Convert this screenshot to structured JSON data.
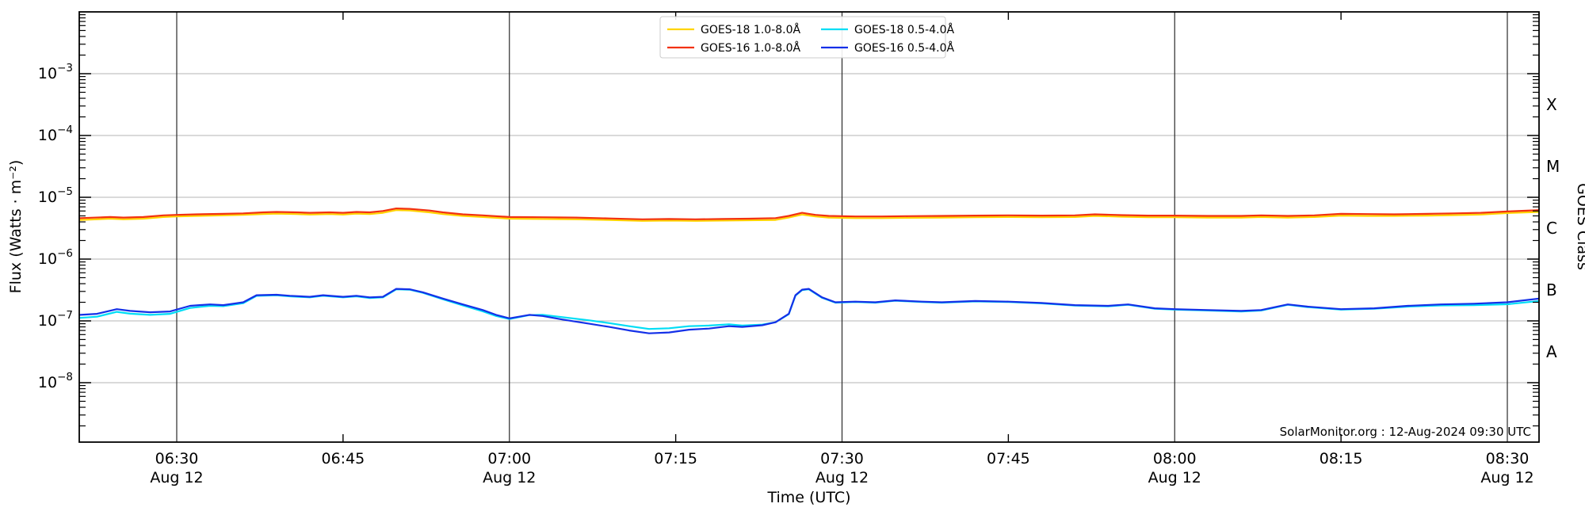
{
  "page": {
    "background": "#ffffff"
  },
  "chart_data": {
    "type": "line",
    "title": "",
    "xlabel": "Time (UTC)",
    "ylabel": "Flux (Watts · m⁻²)",
    "right_axis_label": "GOES Class",
    "x_scale": "time_utc_hours",
    "y_scale": "log10",
    "xlim_hours": [
      6.3535,
      8.5476
    ],
    "ylim": [
      1.1e-09,
      0.011
    ],
    "grid": {
      "x_major_lines": true,
      "y_decade_lines": true,
      "legend_position": "top-center"
    },
    "x_ticks_major": [
      {
        "hours": 6.5,
        "time": "06:30",
        "date": "Aug 12"
      },
      {
        "hours": 7.0,
        "time": "07:00",
        "date": "Aug 12"
      },
      {
        "hours": 7.5,
        "time": "07:30",
        "date": "Aug 12"
      },
      {
        "hours": 8.0,
        "time": "08:00",
        "date": "Aug 12"
      },
      {
        "hours": 8.5,
        "time": "08:30",
        "date": "Aug 12"
      }
    ],
    "x_ticks_minor": [
      {
        "hours": 6.75,
        "time": "06:45"
      },
      {
        "hours": 7.25,
        "time": "07:15"
      },
      {
        "hours": 7.75,
        "time": "07:45"
      },
      {
        "hours": 8.25,
        "time": "08:15"
      }
    ],
    "y_ticks": [
      {
        "exponent": -3,
        "label": "10⁻³"
      },
      {
        "exponent": -4,
        "label": "10⁻⁴"
      },
      {
        "exponent": -5,
        "label": "10⁻⁵"
      },
      {
        "exponent": -6,
        "label": "10⁻⁶"
      },
      {
        "exponent": -7,
        "label": "10⁻⁷"
      },
      {
        "exponent": -8,
        "label": "10⁻⁸"
      }
    ],
    "goes_class_labels": [
      {
        "label": "X",
        "log10_flux": -3.5
      },
      {
        "label": "M",
        "log10_flux": -4.5
      },
      {
        "label": "C",
        "log10_flux": -5.5
      },
      {
        "label": "B",
        "log10_flux": -6.5
      },
      {
        "label": "A",
        "log10_flux": -7.5
      }
    ],
    "annotation": {
      "text": "SolarMonitor.org : 12-Aug-2024 09:30 UTC",
      "position": "bottom-right"
    },
    "series": [
      {
        "name": "GOES-18 1.0-8.0Å",
        "color": "#ffd400",
        "points": [
          [
            6.355,
            4.3e-06
          ],
          [
            6.4,
            4.5e-06
          ],
          [
            6.42,
            4.4e-06
          ],
          [
            6.45,
            4.5e-06
          ],
          [
            6.48,
            4.8e-06
          ],
          [
            6.5,
            4.9e-06
          ],
          [
            6.53,
            5e-06
          ],
          [
            6.57,
            5.1e-06
          ],
          [
            6.6,
            5.2e-06
          ],
          [
            6.63,
            5.35e-06
          ],
          [
            6.65,
            5.45e-06
          ],
          [
            6.68,
            5.35e-06
          ],
          [
            6.7,
            5.25e-06
          ],
          [
            6.73,
            5.35e-06
          ],
          [
            6.75,
            5.25e-06
          ],
          [
            6.77,
            5.45e-06
          ],
          [
            6.79,
            5.35e-06
          ],
          [
            6.81,
            5.6e-06
          ],
          [
            6.83,
            6.2e-06
          ],
          [
            6.85,
            6.1e-06
          ],
          [
            6.88,
            5.7e-06
          ],
          [
            6.9,
            5.35e-06
          ],
          [
            6.93,
            5e-06
          ],
          [
            6.96,
            4.8e-06
          ],
          [
            7.0,
            4.5e-06
          ],
          [
            7.05,
            4.45e-06
          ],
          [
            7.1,
            4.4e-06
          ],
          [
            7.15,
            4.3e-06
          ],
          [
            7.2,
            4.15e-06
          ],
          [
            7.24,
            4.2e-06
          ],
          [
            7.28,
            4.15e-06
          ],
          [
            7.32,
            4.2e-06
          ],
          [
            7.36,
            4.25e-06
          ],
          [
            7.4,
            4.3e-06
          ],
          [
            7.42,
            4.7e-06
          ],
          [
            7.44,
            5.25e-06
          ],
          [
            7.46,
            4.9e-06
          ],
          [
            7.48,
            4.7e-06
          ],
          [
            7.52,
            4.6e-06
          ],
          [
            7.56,
            4.6e-06
          ],
          [
            7.6,
            4.65e-06
          ],
          [
            7.65,
            4.7e-06
          ],
          [
            7.7,
            4.75e-06
          ],
          [
            7.75,
            4.8e-06
          ],
          [
            7.8,
            4.75e-06
          ],
          [
            7.85,
            4.8e-06
          ],
          [
            7.88,
            5e-06
          ],
          [
            7.92,
            4.85e-06
          ],
          [
            7.96,
            4.75e-06
          ],
          [
            8.0,
            4.75e-06
          ],
          [
            8.05,
            4.7e-06
          ],
          [
            8.1,
            4.7e-06
          ],
          [
            8.13,
            4.8e-06
          ],
          [
            8.17,
            4.7e-06
          ],
          [
            8.21,
            4.8e-06
          ],
          [
            8.25,
            5.05e-06
          ],
          [
            8.29,
            5e-06
          ],
          [
            8.33,
            5e-06
          ],
          [
            8.38,
            5.05e-06
          ],
          [
            8.42,
            5.15e-06
          ],
          [
            8.46,
            5.25e-06
          ],
          [
            8.5,
            5.55e-06
          ],
          [
            8.548,
            5.8e-06
          ]
        ]
      },
      {
        "name": "GOES-16 1.0-8.0Å",
        "color": "#f23110",
        "points": [
          [
            6.355,
            4.6e-06
          ],
          [
            6.4,
            4.8e-06
          ],
          [
            6.42,
            4.7e-06
          ],
          [
            6.45,
            4.8e-06
          ],
          [
            6.48,
            5.1e-06
          ],
          [
            6.5,
            5.2e-06
          ],
          [
            6.53,
            5.3e-06
          ],
          [
            6.57,
            5.4e-06
          ],
          [
            6.6,
            5.5e-06
          ],
          [
            6.63,
            5.7e-06
          ],
          [
            6.65,
            5.8e-06
          ],
          [
            6.68,
            5.7e-06
          ],
          [
            6.7,
            5.6e-06
          ],
          [
            6.73,
            5.7e-06
          ],
          [
            6.75,
            5.6e-06
          ],
          [
            6.77,
            5.8e-06
          ],
          [
            6.79,
            5.7e-06
          ],
          [
            6.81,
            6e-06
          ],
          [
            6.83,
            6.6e-06
          ],
          [
            6.85,
            6.5e-06
          ],
          [
            6.88,
            6.1e-06
          ],
          [
            6.9,
            5.7e-06
          ],
          [
            6.93,
            5.3e-06
          ],
          [
            6.96,
            5.1e-06
          ],
          [
            7.0,
            4.8e-06
          ],
          [
            7.05,
            4.75e-06
          ],
          [
            7.1,
            4.7e-06
          ],
          [
            7.15,
            4.55e-06
          ],
          [
            7.2,
            4.4e-06
          ],
          [
            7.24,
            4.45e-06
          ],
          [
            7.28,
            4.4e-06
          ],
          [
            7.32,
            4.45e-06
          ],
          [
            7.36,
            4.5e-06
          ],
          [
            7.4,
            4.6e-06
          ],
          [
            7.42,
            5e-06
          ],
          [
            7.44,
            5.6e-06
          ],
          [
            7.46,
            5.2e-06
          ],
          [
            7.48,
            5e-06
          ],
          [
            7.52,
            4.9e-06
          ],
          [
            7.56,
            4.9e-06
          ],
          [
            7.6,
            4.95e-06
          ],
          [
            7.65,
            5e-06
          ],
          [
            7.7,
            5.05e-06
          ],
          [
            7.75,
            5.1e-06
          ],
          [
            7.8,
            5.05e-06
          ],
          [
            7.85,
            5.1e-06
          ],
          [
            7.88,
            5.3e-06
          ],
          [
            7.92,
            5.15e-06
          ],
          [
            7.96,
            5.05e-06
          ],
          [
            8.0,
            5.05e-06
          ],
          [
            8.05,
            5e-06
          ],
          [
            8.1,
            5e-06
          ],
          [
            8.13,
            5.1e-06
          ],
          [
            8.17,
            5e-06
          ],
          [
            8.21,
            5.1e-06
          ],
          [
            8.25,
            5.4e-06
          ],
          [
            8.29,
            5.35e-06
          ],
          [
            8.33,
            5.3e-06
          ],
          [
            8.38,
            5.4e-06
          ],
          [
            8.42,
            5.5e-06
          ],
          [
            8.46,
            5.6e-06
          ],
          [
            8.5,
            5.9e-06
          ],
          [
            8.548,
            6.2e-06
          ]
        ]
      },
      {
        "name": "GOES-18 0.5-4.0Å",
        "color": "#00ddf5",
        "points": [
          [
            6.355,
            1.12e-07
          ],
          [
            6.38,
            1.17e-07
          ],
          [
            6.41,
            1.4e-07
          ],
          [
            6.43,
            1.31e-07
          ],
          [
            6.46,
            1.25e-07
          ],
          [
            6.49,
            1.3e-07
          ],
          [
            6.52,
            1.62e-07
          ],
          [
            6.55,
            1.75e-07
          ],
          [
            6.57,
            1.73e-07
          ],
          [
            6.6,
            1.93e-07
          ],
          [
            6.62,
            2.54e-07
          ],
          [
            6.65,
            2.6e-07
          ],
          [
            6.67,
            2.5e-07
          ],
          [
            6.7,
            2.4e-07
          ],
          [
            6.72,
            2.55e-07
          ],
          [
            6.75,
            2.4e-07
          ],
          [
            6.77,
            2.5e-07
          ],
          [
            6.79,
            2.35e-07
          ],
          [
            6.81,
            2.4e-07
          ],
          [
            6.83,
            3.24e-07
          ],
          [
            6.85,
            3.2e-07
          ],
          [
            6.87,
            2.84e-07
          ],
          [
            6.9,
            2.24e-07
          ],
          [
            6.93,
            1.78e-07
          ],
          [
            6.96,
            1.43e-07
          ],
          [
            6.98,
            1.2e-07
          ],
          [
            7.0,
            1.07e-07
          ],
          [
            7.03,
            1.24e-07
          ],
          [
            7.05,
            1.25e-07
          ],
          [
            7.08,
            1.15e-07
          ],
          [
            7.12,
            1.02e-07
          ],
          [
            7.15,
            9.2e-08
          ],
          [
            7.18,
            8.2e-08
          ],
          [
            7.21,
            7.4e-08
          ],
          [
            7.24,
            7.6e-08
          ],
          [
            7.27,
            8.2e-08
          ],
          [
            7.3,
            8.4e-08
          ],
          [
            7.33,
            8.8e-08
          ],
          [
            7.35,
            8.4e-08
          ],
          [
            7.38,
            8.7e-08
          ],
          [
            7.4,
            9.5e-08
          ],
          [
            7.42,
            1.28e-07
          ],
          [
            7.43,
            2.56e-07
          ],
          [
            7.44,
            3.15e-07
          ],
          [
            7.45,
            3.25e-07
          ],
          [
            7.47,
            2.36e-07
          ],
          [
            7.49,
            1.97e-07
          ],
          [
            7.52,
            2.02e-07
          ],
          [
            7.55,
            1.97e-07
          ],
          [
            7.58,
            2.12e-07
          ],
          [
            7.62,
            2.02e-07
          ],
          [
            7.65,
            1.97e-07
          ],
          [
            7.7,
            2.07e-07
          ],
          [
            7.75,
            2.02e-07
          ],
          [
            7.8,
            1.92e-07
          ],
          [
            7.85,
            1.77e-07
          ],
          [
            7.9,
            1.72e-07
          ],
          [
            7.93,
            1.82e-07
          ],
          [
            7.97,
            1.57e-07
          ],
          [
            8.0,
            1.52e-07
          ],
          [
            8.05,
            1.47e-07
          ],
          [
            8.1,
            1.42e-07
          ],
          [
            8.13,
            1.47e-07
          ],
          [
            8.17,
            1.82e-07
          ],
          [
            8.2,
            1.67e-07
          ],
          [
            8.25,
            1.52e-07
          ],
          [
            8.3,
            1.57e-07
          ],
          [
            8.35,
            1.7e-07
          ],
          [
            8.4,
            1.78e-07
          ],
          [
            8.45,
            1.8e-07
          ],
          [
            8.5,
            1.86e-07
          ],
          [
            8.548,
            2.1e-07
          ]
        ]
      },
      {
        "name": "GOES-16 0.5-4.0Å",
        "color": "#1430e8",
        "points": [
          [
            6.355,
            1.25e-07
          ],
          [
            6.38,
            1.3e-07
          ],
          [
            6.41,
            1.55e-07
          ],
          [
            6.43,
            1.45e-07
          ],
          [
            6.46,
            1.38e-07
          ],
          [
            6.49,
            1.42e-07
          ],
          [
            6.52,
            1.75e-07
          ],
          [
            6.55,
            1.85e-07
          ],
          [
            6.57,
            1.8e-07
          ],
          [
            6.6,
            2e-07
          ],
          [
            6.62,
            2.6e-07
          ],
          [
            6.65,
            2.65e-07
          ],
          [
            6.67,
            2.55e-07
          ],
          [
            6.7,
            2.45e-07
          ],
          [
            6.72,
            2.6e-07
          ],
          [
            6.75,
            2.45e-07
          ],
          [
            6.77,
            2.55e-07
          ],
          [
            6.79,
            2.4e-07
          ],
          [
            6.81,
            2.45e-07
          ],
          [
            6.83,
            3.3e-07
          ],
          [
            6.85,
            3.25e-07
          ],
          [
            6.87,
            2.9e-07
          ],
          [
            6.9,
            2.3e-07
          ],
          [
            6.93,
            1.85e-07
          ],
          [
            6.96,
            1.5e-07
          ],
          [
            6.98,
            1.25e-07
          ],
          [
            7.0,
            1.1e-07
          ],
          [
            7.03,
            1.25e-07
          ],
          [
            7.05,
            1.2e-07
          ],
          [
            7.08,
            1.05e-07
          ],
          [
            7.12,
            9e-08
          ],
          [
            7.15,
            8e-08
          ],
          [
            7.18,
            7e-08
          ],
          [
            7.21,
            6.3e-08
          ],
          [
            7.24,
            6.5e-08
          ],
          [
            7.27,
            7.2e-08
          ],
          [
            7.3,
            7.5e-08
          ],
          [
            7.33,
            8.2e-08
          ],
          [
            7.35,
            8e-08
          ],
          [
            7.38,
            8.5e-08
          ],
          [
            7.4,
            9.5e-08
          ],
          [
            7.42,
            1.3e-07
          ],
          [
            7.43,
            2.6e-07
          ],
          [
            7.44,
            3.2e-07
          ],
          [
            7.45,
            3.3e-07
          ],
          [
            7.47,
            2.4e-07
          ],
          [
            7.49,
            2e-07
          ],
          [
            7.52,
            2.05e-07
          ],
          [
            7.55,
            2e-07
          ],
          [
            7.58,
            2.15e-07
          ],
          [
            7.62,
            2.05e-07
          ],
          [
            7.65,
            2e-07
          ],
          [
            7.7,
            2.1e-07
          ],
          [
            7.75,
            2.05e-07
          ],
          [
            7.8,
            1.95e-07
          ],
          [
            7.85,
            1.8e-07
          ],
          [
            7.9,
            1.75e-07
          ],
          [
            7.93,
            1.85e-07
          ],
          [
            7.97,
            1.6e-07
          ],
          [
            8.0,
            1.55e-07
          ],
          [
            8.05,
            1.5e-07
          ],
          [
            8.1,
            1.45e-07
          ],
          [
            8.13,
            1.5e-07
          ],
          [
            8.17,
            1.85e-07
          ],
          [
            8.2,
            1.7e-07
          ],
          [
            8.25,
            1.55e-07
          ],
          [
            8.3,
            1.6e-07
          ],
          [
            8.35,
            1.75e-07
          ],
          [
            8.4,
            1.85e-07
          ],
          [
            8.45,
            1.9e-07
          ],
          [
            8.5,
            2e-07
          ],
          [
            8.548,
            2.3e-07
          ]
        ]
      }
    ]
  }
}
